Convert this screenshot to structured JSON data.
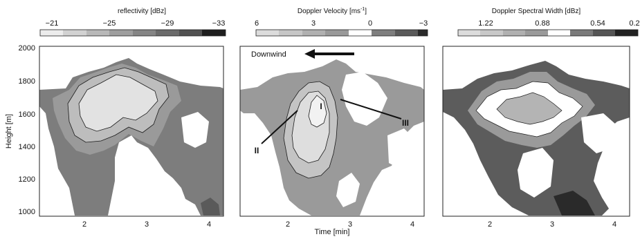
{
  "figure": {
    "ylabel": "Height [m]",
    "xlabel": "Time [min]",
    "yticks": [
      "2000",
      "1800",
      "1600",
      "1400",
      "1200",
      "1000"
    ],
    "xticks": [
      "2",
      "3",
      "4"
    ]
  },
  "panels": [
    {
      "colorbar_label": "reflectivity [dBz]",
      "colorbar_ticks": [
        "−21",
        "−25",
        "−29",
        "−33"
      ],
      "colorbar_colors": [
        "#ececec",
        "#d2d2d2",
        "#b8b8b8",
        "#9e9e9e",
        "#858585",
        "#6b6b6b",
        "#515151",
        "#1e1e1e"
      ]
    },
    {
      "colorbar_label": "Doppler Velocity [ms",
      "colorbar_label_sup": "-1",
      "colorbar_label_end": "]",
      "colorbar_ticks": [
        "6",
        "3",
        "0",
        "−3"
      ],
      "colorbar_colors": [
        "#dcdcdc",
        "#c6c6c6",
        "#b0b0b0",
        "#999999",
        "#ffffff",
        "#7e7e7e",
        "#5a5a5a",
        "#2a2a2a"
      ],
      "annotation": "Downwind",
      "labels": [
        "I",
        "II",
        "III"
      ]
    },
    {
      "colorbar_label": "Doppler Spectral Width [dBz]",
      "colorbar_ticks": [
        "1.22",
        "0.88",
        "0.54",
        "0.2"
      ],
      "colorbar_colors": [
        "#dcdcdc",
        "#c8c8c8",
        "#b0b0b0",
        "#9a9a9a",
        "#ffffff",
        "#7a7a7a",
        "#555555",
        "#222222"
      ]
    }
  ],
  "chart_data": {
    "type": "heatmap",
    "x_range_min": [
      1.4,
      4.25
    ],
    "y_range_m": [
      960,
      2010
    ],
    "panels": [
      "reflectivity",
      "doppler_velocity",
      "spectral_width"
    ],
    "colorbars": [
      {
        "variable": "reflectivity",
        "unit": "dBz",
        "ticks": [
          -21,
          -25,
          -29,
          -33
        ]
      },
      {
        "variable": "Doppler velocity",
        "unit": "m s-1",
        "ticks": [
          6,
          3,
          0,
          -3
        ]
      },
      {
        "variable": "Doppler spectral width",
        "unit": "dBz",
        "ticks": [
          1.22,
          0.88,
          0.54,
          0.2
        ]
      }
    ]
  }
}
